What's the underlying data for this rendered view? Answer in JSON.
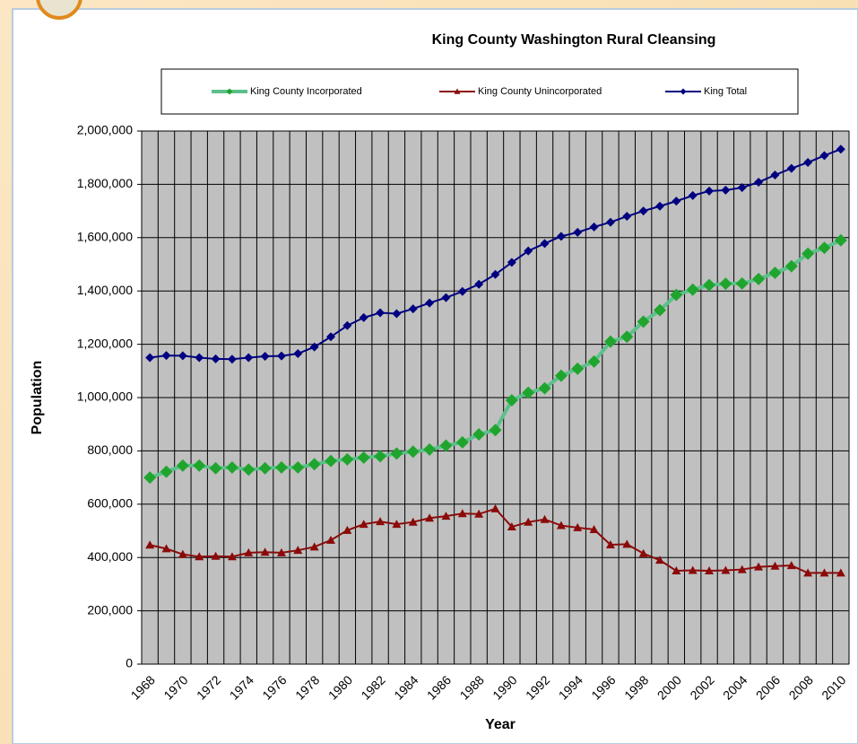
{
  "chart_data": {
    "type": "line",
    "title": "King County Washington Rural Cleansing",
    "xlabel": "Year",
    "ylabel": "Population",
    "categories": [
      "1968",
      null,
      "1970",
      null,
      "1972",
      null,
      "1974",
      null,
      "1976",
      null,
      "1978",
      null,
      "1980",
      null,
      "1982",
      null,
      "1984",
      null,
      "1986",
      null,
      "1988",
      null,
      "1990",
      null,
      "1992",
      null,
      "1994",
      null,
      "1996",
      null,
      "1998",
      null,
      "2000",
      null,
      "2002",
      null,
      "2004",
      null,
      "2006",
      null,
      "2008",
      null,
      "2010"
    ],
    "series": [
      {
        "name": "King County Incorporated",
        "color": "#1fa52e",
        "line_color": "#5cc08a",
        "marker": "diamond",
        "values": [
          700000,
          722000,
          745000,
          745000,
          735000,
          738000,
          730000,
          735000,
          738000,
          738000,
          750000,
          762000,
          768000,
          775000,
          780000,
          790000,
          797000,
          805000,
          820000,
          832000,
          862000,
          878000,
          990000,
          1018000,
          1035000,
          1082000,
          1108000,
          1135000,
          1210000,
          1228000,
          1285000,
          1328000,
          1385000,
          1405000,
          1422000,
          1427000,
          1428000,
          1445000,
          1468000,
          1493000,
          1540000,
          1562000,
          1590000
        ]
      },
      {
        "name": "King County Unincorporated",
        "color": "#8b0a0a",
        "line_color": "#8b0a0a",
        "marker": "triangle",
        "values": [
          447000,
          433000,
          412000,
          403000,
          405000,
          403000,
          418000,
          420000,
          418000,
          427000,
          440000,
          465000,
          502000,
          525000,
          535000,
          525000,
          533000,
          548000,
          555000,
          565000,
          563000,
          583000,
          515000,
          533000,
          543000,
          520000,
          512000,
          505000,
          448000,
          450000,
          415000,
          390000,
          350000,
          352000,
          350000,
          352000,
          355000,
          365000,
          368000,
          370000,
          342000,
          342000,
          342000
        ]
      },
      {
        "name": "King Total",
        "color": "#000080",
        "line_color": "#000080",
        "marker": "diamond",
        "values": [
          1150000,
          1158000,
          1157000,
          1150000,
          1145000,
          1144000,
          1150000,
          1155000,
          1156000,
          1165000,
          1190000,
          1228000,
          1270000,
          1300000,
          1318000,
          1315000,
          1333000,
          1355000,
          1375000,
          1398000,
          1425000,
          1462000,
          1507000,
          1550000,
          1578000,
          1605000,
          1620000,
          1640000,
          1658000,
          1680000,
          1700000,
          1718000,
          1737000,
          1758000,
          1775000,
          1778000,
          1788000,
          1808000,
          1835000,
          1860000,
          1882000,
          1908000,
          1932000
        ]
      }
    ],
    "ylim": [
      0,
      2000000
    ],
    "yticks": [
      0,
      {
        "value": 200000,
        "label": "200,000"
      },
      {
        "value": 400000,
        "label": "400,000"
      },
      {
        "value": 600000,
        "label": "600,000"
      },
      {
        "value": 800000,
        "label": "800,000"
      },
      {
        "value": 1000000,
        "label": "1,000,000"
      },
      {
        "value": 1200000,
        "label": "1,200,000"
      },
      {
        "value": 1400000,
        "label": "1,400,000"
      },
      {
        "value": 1600000,
        "label": "1,600,000"
      },
      {
        "value": 1800000,
        "label": "1,800,000"
      },
      {
        "value": 2000000,
        "label": "2,000,000"
      }
    ],
    "grid": true,
    "plot_background": "#c0c0c0",
    "legend": "top"
  }
}
